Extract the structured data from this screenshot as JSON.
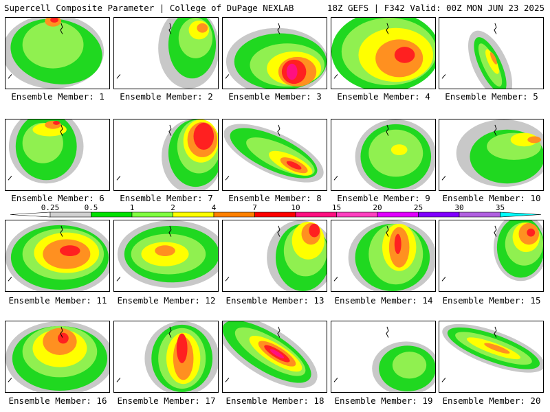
{
  "header": {
    "left": "Supercell Composite Parameter | College of DuPage NEXLAB",
    "right": "18Z GEFS | F342 Valid: 00Z MON JUN 23 2025"
  },
  "colorbar": {
    "ticks": [
      "0.25",
      "0.5",
      "1",
      "2",
      "4",
      "7",
      "10",
      "15",
      "20",
      "25",
      "30",
      "35"
    ],
    "colors": [
      "#d0d0d0",
      "#00e000",
      "#80ff40",
      "#ffff00",
      "#ff8000",
      "#ff0000",
      "#ff1080",
      "#ff40c0",
      "#e000ff",
      "#8000ff",
      "#b060e0",
      "#00ffff"
    ]
  },
  "fill_colors": {
    "gray": "#c8c8c8",
    "green": "#20d820",
    "lightgreen": "#90f050",
    "yellow": "#ffff00",
    "orange": "#ff9020",
    "red": "#ff2020",
    "magenta": "#ff1080"
  },
  "members": [
    {
      "label": "Ensemble Member: 1"
    },
    {
      "label": "Ensemble Member: 2"
    },
    {
      "label": "Ensemble Member: 3"
    },
    {
      "label": "Ensemble Member: 4"
    },
    {
      "label": "Ensemble Member: 5"
    },
    {
      "label": "Ensemble Member: 6"
    },
    {
      "label": "Ensemble Member: 7"
    },
    {
      "label": "Ensemble Member: 8"
    },
    {
      "label": "Ensemble Member: 9"
    },
    {
      "label": "Ensemble Member: 10"
    },
    {
      "label": "Ensemble Member: 11"
    },
    {
      "label": "Ensemble Member: 12"
    },
    {
      "label": "Ensemble Member: 13"
    },
    {
      "label": "Ensemble Member: 14"
    },
    {
      "label": "Ensemble Member: 15"
    },
    {
      "label": "Ensemble Member: 16"
    },
    {
      "label": "Ensemble Member: 17"
    },
    {
      "label": "Ensemble Member: 18"
    },
    {
      "label": "Ensemble Member: 19"
    },
    {
      "label": "Ensemble Member: 20"
    }
  ]
}
